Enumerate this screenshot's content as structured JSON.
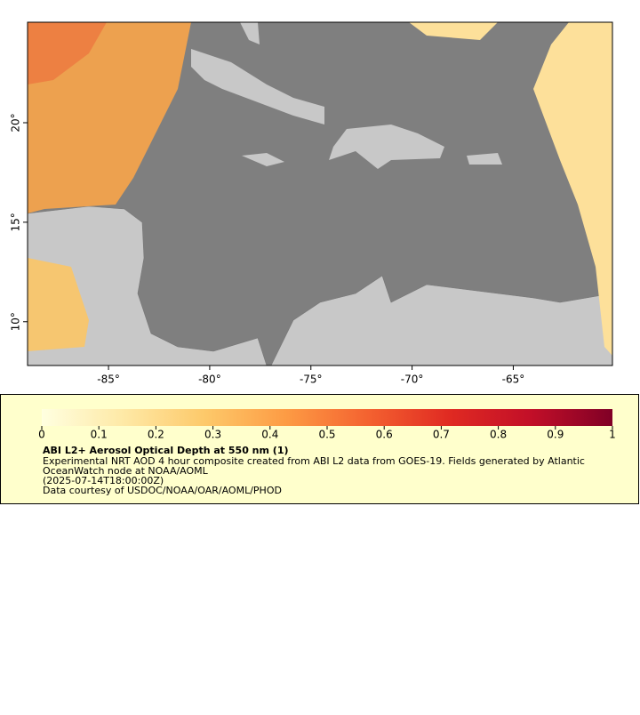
{
  "map": {
    "lonlim": [
      -89,
      -60.1
    ],
    "latlim": [
      7.8,
      25.05
    ],
    "xticks": [
      {
        "value": -85,
        "label": "-85°"
      },
      {
        "value": -80,
        "label": "-80°"
      },
      {
        "value": -75,
        "label": "-75°"
      },
      {
        "value": -70,
        "label": "-70°"
      },
      {
        "value": -65,
        "label": "-65°"
      }
    ],
    "yticks": [
      {
        "value": 10,
        "label": "10°"
      },
      {
        "value": 15,
        "label": "15°"
      },
      {
        "value": 20,
        "label": "20°"
      }
    ]
  },
  "colorbar": {
    "lim": [
      0,
      1
    ],
    "ticks": [
      0,
      0.1,
      0.2,
      0.3,
      0.4,
      0.5,
      0.6,
      0.7,
      0.8,
      0.9,
      1
    ],
    "colors": [
      "#ffffe0",
      "#fee9a6",
      "#fdc96a",
      "#fd9b44",
      "#f46230",
      "#e02a22",
      "#c20f28",
      "#800026"
    ]
  },
  "info": {
    "title": "ABI L2+ Aerosol Optical Depth at 550 nm (1)",
    "lines": [
      "Experimental NRT AOD 4 hour composite created from ABI L2 data from GOES-19. Fields generated by Atlantic",
      "OceanWatch node at NOAA/AOML",
      "(2025-07-14T18:00:00Z)",
      "Data courtesy of USDOC/NOAA/OAR/AOML/PHOD"
    ]
  }
}
